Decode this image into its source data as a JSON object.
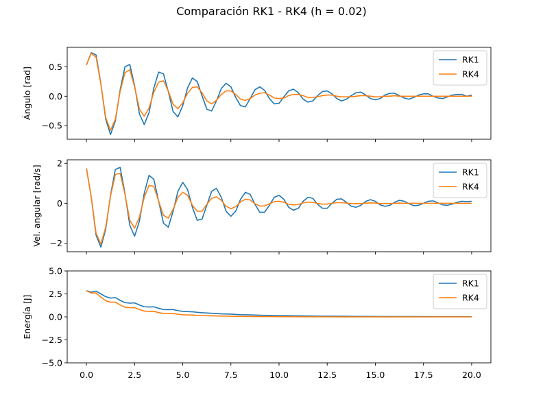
{
  "figure": {
    "suptitle": "Comparación RK1 - RK4 (h = 0.02)"
  },
  "colors": {
    "rk1": "#1f77b4",
    "rk4": "#ff7f0e",
    "axes": "#000000",
    "legend_border": "#cccccc"
  },
  "chart_data": [
    {
      "type": "line",
      "ylabel": "Ángulo [rad]",
      "xlim": [
        -1.0,
        21.0
      ],
      "ylim": [
        -0.73,
        0.83
      ],
      "yticks": [
        -0.5,
        0.0,
        0.5
      ],
      "ytick_labels": [
        "−0.5",
        "0.0",
        "0.5"
      ],
      "xticks": [
        0,
        2.5,
        5,
        7.5,
        10,
        12.5,
        15,
        17.5,
        20
      ],
      "show_xtick_labels": false,
      "legend": "upper right",
      "series": [
        {
          "name": "RK1",
          "x": [
            0,
            0.25,
            0.5,
            0.75,
            1.0,
            1.25,
            1.5,
            1.75,
            2.0,
            2.25,
            2.5,
            2.75,
            3.0,
            3.25,
            3.5,
            3.75,
            4.0,
            4.25,
            4.5,
            4.75,
            5.0,
            5.25,
            5.5,
            5.75,
            6.0,
            6.25,
            6.5,
            6.75,
            7.0,
            7.25,
            7.5,
            7.75,
            8.0,
            8.25,
            8.5,
            8.75,
            9.0,
            9.25,
            9.5,
            9.75,
            10.0,
            10.25,
            10.5,
            10.75,
            11.0,
            11.25,
            11.5,
            11.75,
            12.0,
            12.25,
            12.5,
            12.75,
            13.0,
            13.25,
            13.5,
            13.75,
            14.0,
            14.25,
            14.5,
            14.75,
            15.0,
            15.25,
            15.5,
            15.75,
            16.0,
            16.25,
            16.5,
            16.75,
            17.0,
            17.25,
            17.5,
            17.75,
            18.0,
            18.25,
            18.5,
            18.75,
            19.0,
            19.25,
            19.5,
            19.75,
            20.0
          ],
          "y": [
            0.53,
            0.74,
            0.7,
            0.21,
            -0.39,
            -0.65,
            -0.42,
            0.11,
            0.5,
            0.54,
            0.18,
            -0.3,
            -0.48,
            -0.28,
            0.14,
            0.41,
            0.38,
            0.08,
            -0.26,
            -0.35,
            -0.16,
            0.14,
            0.31,
            0.25,
            0.01,
            -0.22,
            -0.25,
            -0.08,
            0.13,
            0.22,
            0.16,
            -0.02,
            -0.16,
            -0.18,
            -0.04,
            0.11,
            0.16,
            0.1,
            -0.04,
            -0.13,
            -0.12,
            -0.01,
            0.09,
            0.12,
            0.06,
            -0.05,
            -0.1,
            -0.08,
            0.01,
            0.08,
            0.09,
            0.04,
            -0.04,
            -0.08,
            -0.05,
            0.01,
            0.06,
            0.07,
            0.02,
            -0.04,
            -0.06,
            -0.04,
            0.02,
            0.05,
            0.05,
            0.01,
            -0.03,
            -0.05,
            -0.02,
            0.02,
            0.04,
            0.04,
            0.0,
            -0.03,
            -0.04,
            -0.01,
            0.02,
            0.03,
            0.03,
            0.0,
            0.02
          ]
        },
        {
          "name": "RK4",
          "x": [
            0,
            0.25,
            0.5,
            0.75,
            1.0,
            1.25,
            1.5,
            1.75,
            2.0,
            2.25,
            2.5,
            2.75,
            3.0,
            3.25,
            3.5,
            3.75,
            4.0,
            4.25,
            4.5,
            4.75,
            5.0,
            5.25,
            5.5,
            5.75,
            6.0,
            6.25,
            6.5,
            6.75,
            7.0,
            7.25,
            7.5,
            7.75,
            8.0,
            8.25,
            8.5,
            8.75,
            9.0,
            9.25,
            9.5,
            9.75,
            10.0,
            10.25,
            10.5,
            10.75,
            11.0,
            11.25,
            11.5,
            11.75,
            12.0,
            12.25,
            12.5,
            12.75,
            13.0,
            13.25,
            13.5,
            13.75,
            14.0,
            14.25,
            14.5,
            14.75,
            15.0,
            15.25,
            15.5,
            15.75,
            16.0,
            16.25,
            16.5,
            16.75,
            17.0,
            17.25,
            17.5,
            17.75,
            18.0,
            18.25,
            18.5,
            18.75,
            19.0,
            19.25,
            19.5,
            19.75,
            20.0
          ],
          "y": [
            0.53,
            0.73,
            0.66,
            0.2,
            -0.36,
            -0.58,
            -0.39,
            0.08,
            0.4,
            0.45,
            0.16,
            -0.22,
            -0.34,
            -0.2,
            0.07,
            0.24,
            0.26,
            0.09,
            -0.14,
            -0.21,
            -0.11,
            0.05,
            0.15,
            0.16,
            0.06,
            -0.08,
            -0.13,
            -0.07,
            0.03,
            0.09,
            0.09,
            0.03,
            -0.05,
            -0.07,
            -0.04,
            0.02,
            0.05,
            0.06,
            0.02,
            -0.03,
            -0.04,
            -0.03,
            0.01,
            0.03,
            0.03,
            0.01,
            -0.02,
            -0.02,
            -0.01,
            0.01,
            0.02,
            0.02,
            0.0,
            -0.01,
            -0.01,
            -0.01,
            0.0,
            0.01,
            0.01,
            0.0,
            -0.01,
            -0.01,
            0.0,
            0.0,
            0.01,
            0.0,
            0.0,
            0.0,
            0.0,
            0.0,
            0.0,
            0.0,
            0.0,
            0.0,
            0.0,
            0.0,
            0.0,
            0.0,
            0.0,
            0.0,
            0.0
          ]
        }
      ]
    },
    {
      "type": "line",
      "ylabel": "Vel. angular [rad/s]",
      "xlim": [
        -1.0,
        21.0
      ],
      "ylim": [
        -2.43,
        2.18
      ],
      "yticks": [
        -2,
        0,
        2
      ],
      "ytick_labels": [
        "−2",
        "0",
        "2"
      ],
      "xticks": [
        0,
        2.5,
        5,
        7.5,
        10,
        12.5,
        15,
        17.5,
        20
      ],
      "show_xtick_labels": false,
      "legend": "upper right",
      "series": [
        {
          "name": "RK1",
          "x": [
            0,
            0.25,
            0.5,
            0.75,
            1.0,
            1.25,
            1.5,
            1.75,
            2.0,
            2.25,
            2.5,
            2.75,
            3.0,
            3.25,
            3.5,
            3.75,
            4.0,
            4.25,
            4.5,
            4.75,
            5.0,
            5.25,
            5.5,
            5.75,
            6.0,
            6.25,
            6.5,
            6.75,
            7.0,
            7.25,
            7.5,
            7.75,
            8.0,
            8.25,
            8.5,
            8.75,
            9.0,
            9.25,
            9.5,
            9.75,
            10.0,
            10.25,
            10.5,
            10.75,
            11.0,
            11.25,
            11.5,
            11.75,
            12.0,
            12.25,
            12.5,
            12.75,
            13.0,
            13.25,
            13.5,
            13.75,
            14.0,
            14.25,
            14.5,
            14.75,
            15.0,
            15.25,
            15.5,
            15.75,
            16.0,
            16.25,
            16.5,
            16.75,
            17.0,
            17.25,
            17.5,
            17.75,
            18.0,
            18.25,
            18.5,
            18.75,
            19.0,
            19.25,
            19.5,
            19.75,
            20.0
          ],
          "y": [
            1.75,
            0.3,
            -1.6,
            -2.2,
            -1.3,
            0.4,
            1.7,
            1.8,
            0.5,
            -1.1,
            -1.65,
            -0.9,
            0.5,
            1.4,
            1.2,
            0.1,
            -1.0,
            -1.2,
            -0.4,
            0.6,
            1.05,
            0.7,
            -0.2,
            -0.85,
            -0.8,
            -0.1,
            0.6,
            0.75,
            0.3,
            -0.4,
            -0.65,
            -0.4,
            0.2,
            0.55,
            0.45,
            -0.05,
            -0.45,
            -0.45,
            -0.1,
            0.3,
            0.4,
            0.2,
            -0.2,
            -0.35,
            -0.25,
            0.1,
            0.3,
            0.25,
            -0.05,
            -0.25,
            -0.25,
            0.0,
            0.2,
            0.22,
            0.05,
            -0.15,
            -0.2,
            -0.1,
            0.1,
            0.18,
            0.1,
            -0.08,
            -0.15,
            -0.1,
            0.05,
            0.15,
            0.1,
            -0.02,
            -0.12,
            -0.1,
            0.0,
            0.1,
            0.12,
            0.02,
            -0.08,
            -0.1,
            -0.04,
            0.05,
            0.1,
            0.08,
            0.1
          ]
        },
        {
          "name": "RK4",
          "x": [
            0,
            0.25,
            0.5,
            0.75,
            1.0,
            1.25,
            1.5,
            1.75,
            2.0,
            2.25,
            2.5,
            2.75,
            3.0,
            3.25,
            3.5,
            3.75,
            4.0,
            4.25,
            4.5,
            4.75,
            5.0,
            5.25,
            5.5,
            5.75,
            6.0,
            6.25,
            6.5,
            6.75,
            7.0,
            7.25,
            7.5,
            7.75,
            8.0,
            8.25,
            8.5,
            8.75,
            9.0,
            9.25,
            9.5,
            9.75,
            10.0,
            10.25,
            10.5,
            10.75,
            11.0,
            11.25,
            11.5,
            11.75,
            12.0,
            12.25,
            12.5,
            12.75,
            13.0,
            13.25,
            13.5,
            13.75,
            14.0,
            14.25,
            14.5,
            14.75,
            15.0,
            15.25,
            15.5,
            15.75,
            16.0,
            16.25,
            16.5,
            16.75,
            17.0,
            17.25,
            17.5,
            17.75,
            18.0,
            18.25,
            18.5,
            18.75,
            19.0,
            19.25,
            19.5,
            19.75,
            20.0
          ],
          "y": [
            1.75,
            0.3,
            -1.5,
            -2.05,
            -1.2,
            0.35,
            1.45,
            1.5,
            0.45,
            -0.85,
            -1.25,
            -0.7,
            0.3,
            0.9,
            0.85,
            0.1,
            -0.6,
            -0.75,
            -0.3,
            0.3,
            0.55,
            0.4,
            -0.1,
            -0.4,
            -0.4,
            -0.05,
            0.25,
            0.33,
            0.15,
            -0.15,
            -0.27,
            -0.17,
            0.07,
            0.2,
            0.17,
            -0.02,
            -0.14,
            -0.13,
            -0.03,
            0.08,
            0.1,
            0.05,
            -0.05,
            -0.08,
            -0.06,
            0.02,
            0.06,
            0.05,
            -0.01,
            -0.04,
            -0.04,
            0.0,
            0.03,
            0.03,
            0.01,
            -0.02,
            -0.02,
            -0.01,
            0.01,
            0.02,
            0.01,
            -0.01,
            -0.01,
            -0.01,
            0.0,
            0.01,
            0.0,
            0.0,
            0.0,
            0.0,
            0.0,
            0.0,
            0.0,
            0.0,
            0.0,
            0.0,
            0.0,
            0.0,
            0.0,
            0.0,
            0.0
          ]
        }
      ]
    },
    {
      "type": "line",
      "ylabel": "Energía [J]",
      "xlim": [
        -1.0,
        21.0
      ],
      "ylim": [
        -5.0,
        5.0
      ],
      "yticks": [
        -5.0,
        -2.5,
        0.0,
        2.5,
        5.0
      ],
      "ytick_labels": [
        "−5.0",
        "−2.5",
        "0.0",
        "2.5",
        "5.0"
      ],
      "xticks": [
        0,
        2.5,
        5,
        7.5,
        10,
        12.5,
        15,
        17.5,
        20
      ],
      "xtick_labels": [
        "0.0",
        "2.5",
        "5.0",
        "7.5",
        "10.0",
        "12.5",
        "15.0",
        "17.5",
        "20.0"
      ],
      "show_xtick_labels": true,
      "legend": "upper right",
      "series": [
        {
          "name": "RK1",
          "x": [
            0,
            0.25,
            0.5,
            0.75,
            1.0,
            1.25,
            1.5,
            1.75,
            2.0,
            2.25,
            2.5,
            2.75,
            3.0,
            3.25,
            3.5,
            3.75,
            4.0,
            4.25,
            4.5,
            4.75,
            5.0,
            5.5,
            6.0,
            6.5,
            7.0,
            7.5,
            8.0,
            8.5,
            9.0,
            9.5,
            10.0,
            11.0,
            12.0,
            13.0,
            14.0,
            15.0,
            16.0,
            17.0,
            18.0,
            19.0,
            20.0
          ],
          "y": [
            2.85,
            2.7,
            2.8,
            2.5,
            2.2,
            2.05,
            2.1,
            1.8,
            1.55,
            1.5,
            1.52,
            1.3,
            1.1,
            1.08,
            1.1,
            0.93,
            0.8,
            0.79,
            0.8,
            0.68,
            0.6,
            0.55,
            0.45,
            0.4,
            0.33,
            0.3,
            0.24,
            0.22,
            0.18,
            0.16,
            0.14,
            0.11,
            0.08,
            0.07,
            0.05,
            0.04,
            0.03,
            0.03,
            0.02,
            0.02,
            0.02
          ]
        },
        {
          "name": "RK4",
          "x": [
            0,
            0.25,
            0.5,
            0.75,
            1.0,
            1.25,
            1.5,
            1.75,
            2.0,
            2.25,
            2.5,
            2.75,
            3.0,
            3.25,
            3.5,
            3.75,
            4.0,
            4.25,
            4.5,
            4.75,
            5.0,
            5.5,
            6.0,
            6.5,
            7.0,
            7.5,
            8.0,
            8.5,
            9.0,
            9.5,
            10.0,
            11.0,
            12.0,
            13.0,
            14.0,
            15.0,
            16.0,
            17.0,
            18.0,
            19.0,
            20.0
          ],
          "y": [
            2.85,
            2.6,
            2.6,
            2.15,
            1.75,
            1.6,
            1.6,
            1.3,
            1.05,
            1.0,
            1.0,
            0.8,
            0.63,
            0.6,
            0.6,
            0.47,
            0.38,
            0.36,
            0.36,
            0.29,
            0.23,
            0.2,
            0.14,
            0.12,
            0.09,
            0.07,
            0.05,
            0.04,
            0.03,
            0.03,
            0.02,
            0.01,
            0.01,
            0.0,
            0.0,
            0.0,
            0.0,
            0.0,
            0.0,
            0.0,
            0.0
          ]
        }
      ]
    }
  ]
}
